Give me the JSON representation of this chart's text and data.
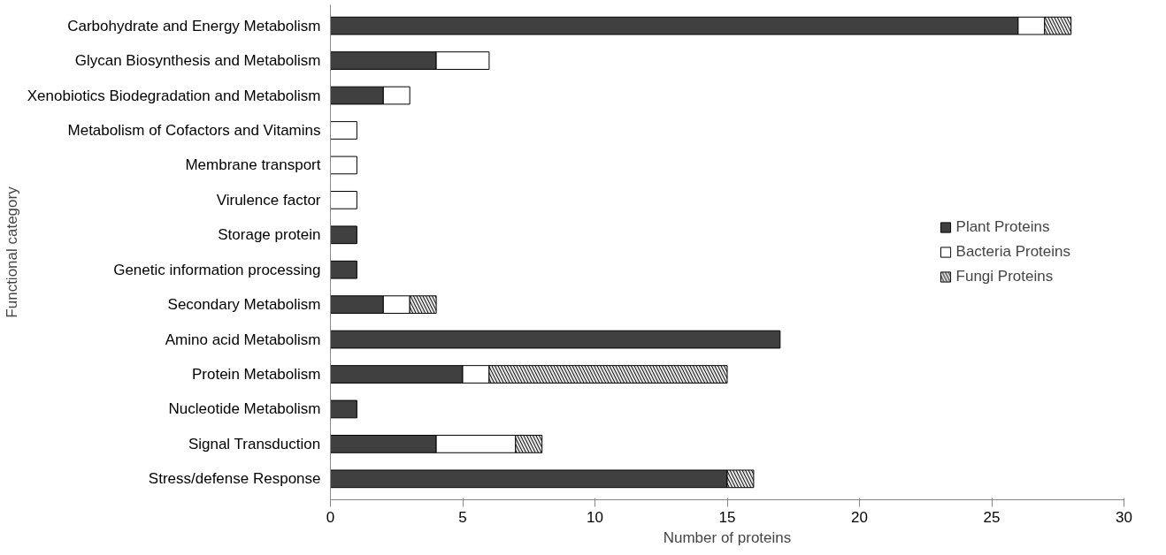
{
  "chart_data": {
    "type": "bar",
    "orientation": "horizontal",
    "stacked": true,
    "xlabel": "Number of proteins",
    "ylabel": "Functional category",
    "categories": [
      "Carbohydrate and Energy Metabolism",
      "Glycan Biosynthesis and Metabolism",
      "Xenobiotics Biodegradation and Metabolism",
      "Metabolism of Cofactors and Vitamins",
      "Membrane transport",
      "Virulence factor",
      "Storage protein",
      "Genetic information processing",
      "Secondary Metabolism",
      "Amino acid Metabolism",
      "Protein Metabolism",
      "Nucleotide Metabolism",
      "Signal Transduction",
      "Stress/defense Response"
    ],
    "series": [
      {
        "name": "Plant Proteins",
        "color": "#404040",
        "values": [
          26,
          4,
          2,
          0,
          0,
          0,
          1,
          1,
          2,
          17,
          5,
          1,
          4,
          15
        ]
      },
      {
        "name": "Bacteria Proteins",
        "color": "#ffffff",
        "values": [
          1,
          2,
          1,
          1,
          1,
          1,
          0,
          0,
          1,
          0,
          1,
          0,
          3,
          0
        ]
      },
      {
        "name": "Fungi Proteins",
        "color": "#e6e6e6",
        "values": [
          1,
          0,
          0,
          0,
          0,
          0,
          0,
          0,
          1,
          0,
          9,
          0,
          1,
          1
        ]
      }
    ],
    "xlim": [
      0,
      30
    ],
    "xticks": [
      0,
      5,
      10,
      15,
      20,
      25,
      30
    ],
    "grid": false,
    "legend": "right"
  }
}
